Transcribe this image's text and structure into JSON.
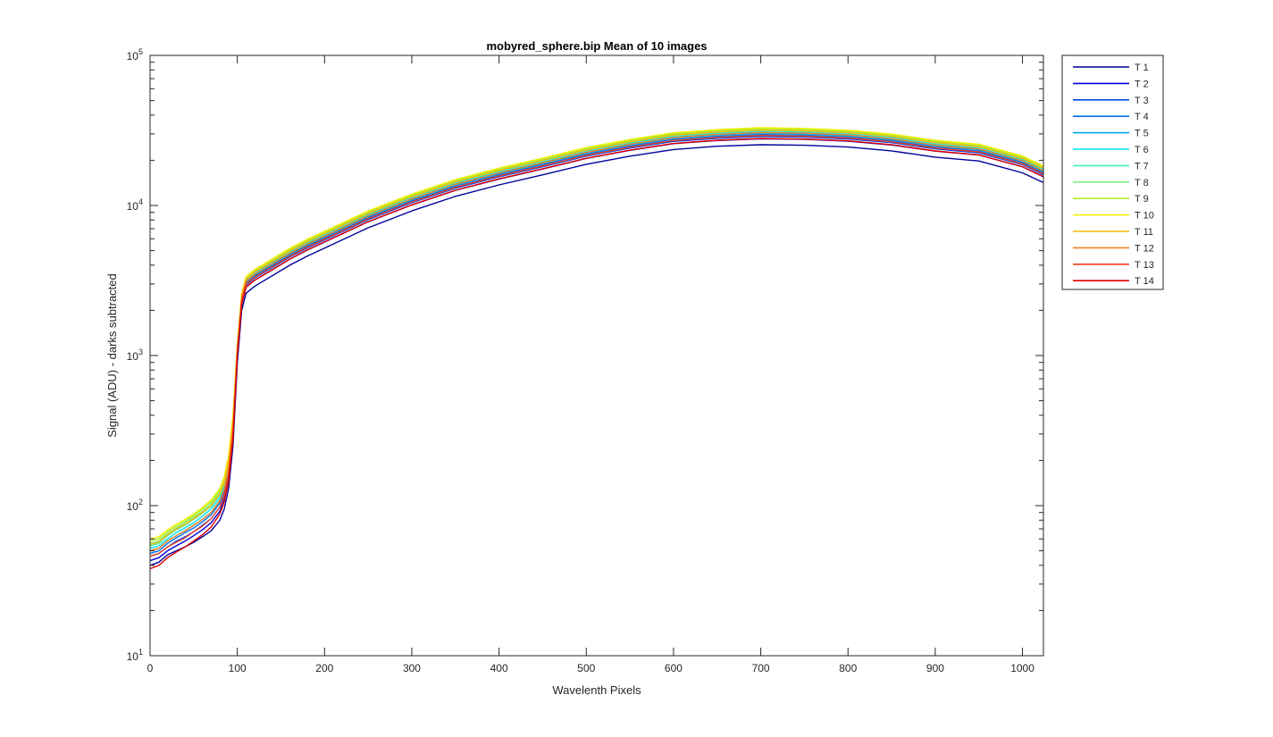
{
  "chart_data": {
    "type": "line",
    "title": "mobyred_sphere.bip  Mean of 10 images",
    "xlabel": "Wavelenth Pixels",
    "ylabel": "Signal (ADU) - darks subtracted",
    "xlim": [
      0,
      1024
    ],
    "ylim": [
      10,
      100000
    ],
    "yscale": "log",
    "grid": false,
    "legend_position": "outside-top-right",
    "x_ticks": [
      "0",
      "100",
      "200",
      "300",
      "400",
      "500",
      "600",
      "700",
      "800",
      "900",
      "1000"
    ],
    "y_ticks": [
      {
        "base": "10",
        "exp": "1"
      },
      {
        "base": "10",
        "exp": "2"
      },
      {
        "base": "10",
        "exp": "3"
      },
      {
        "base": "10",
        "exp": "4"
      },
      {
        "base": "10",
        "exp": "5"
      }
    ],
    "x": [
      0,
      10,
      20,
      30,
      40,
      50,
      60,
      70,
      80,
      85,
      90,
      95,
      100,
      105,
      110,
      120,
      140,
      160,
      180,
      200,
      250,
      300,
      350,
      400,
      450,
      500,
      550,
      600,
      650,
      700,
      750,
      800,
      850,
      900,
      950,
      1000,
      1024
    ],
    "series": [
      {
        "name": "T 1",
        "color": "#00009a",
        "values": [
          40,
          42,
          47,
          50,
          53,
          57,
          62,
          68,
          80,
          95,
          130,
          250,
          900,
          2000,
          2600,
          2900,
          3400,
          4000,
          4600,
          5200,
          7100,
          9200,
          11500,
          13700,
          16000,
          18800,
          21300,
          23600,
          24800,
          25400,
          25200,
          24500,
          23100,
          21000,
          19800,
          16500,
          14200
        ]
      },
      {
        "name": "T 2",
        "color": "#0000d8",
        "values": [
          43,
          45,
          50,
          54,
          58,
          63,
          69,
          77,
          92,
          110,
          150,
          290,
          1000,
          2200,
          2850,
          3180,
          3720,
          4380,
          5040,
          5700,
          7780,
          10080,
          12600,
          15000,
          17500,
          20600,
          23300,
          25800,
          27100,
          27800,
          27600,
          26800,
          25300,
          23000,
          21700,
          18100,
          15500
        ]
      },
      {
        "name": "T 3",
        "color": "#0048f0",
        "values": [
          46,
          48,
          53,
          58,
          62,
          67,
          74,
          82,
          98,
          117,
          160,
          305,
          1040,
          2270,
          2940,
          3290,
          3850,
          4530,
          5210,
          5890,
          8040,
          10420,
          13030,
          15520,
          18100,
          21300,
          24100,
          26700,
          28000,
          28800,
          28500,
          27700,
          26200,
          23800,
          22400,
          18700,
          16000
        ]
      },
      {
        "name": "T 4",
        "color": "#0070e8",
        "values": [
          48,
          50,
          56,
          61,
          66,
          71,
          78,
          87,
          104,
          124,
          170,
          320,
          1070,
          2340,
          3030,
          3390,
          3970,
          4670,
          5370,
          6080,
          8290,
          10740,
          13430,
          16000,
          18700,
          21950,
          24850,
          27550,
          28900,
          29700,
          29400,
          28600,
          27000,
          24500,
          23100,
          19300,
          16500
        ]
      },
      {
        "name": "T 5",
        "color": "#00a8f0",
        "values": [
          50,
          52,
          58,
          63,
          68,
          74,
          81,
          90,
          108,
          129,
          177,
          330,
          1090,
          2390,
          3090,
          3460,
          4050,
          4770,
          5480,
          6200,
          8460,
          10960,
          13700,
          16330,
          19050,
          22400,
          25350,
          28100,
          29500,
          30300,
          30000,
          29200,
          27550,
          25000,
          23600,
          19700,
          16800
        ]
      },
      {
        "name": "T 6",
        "color": "#00e0f0",
        "values": [
          52,
          54,
          60,
          66,
          71,
          77,
          85,
          95,
          113,
          135,
          185,
          345,
          1110,
          2430,
          3150,
          3530,
          4130,
          4860,
          5590,
          6320,
          8620,
          11170,
          13970,
          16650,
          19420,
          22800,
          25850,
          28650,
          30050,
          30900,
          30600,
          29750,
          28100,
          25500,
          24050,
          20100,
          17200
        ]
      },
      {
        "name": "T 7",
        "color": "#40f0c0",
        "values": [
          54,
          56,
          63,
          69,
          74,
          81,
          89,
          99,
          118,
          141,
          193,
          360,
          1130,
          2480,
          3210,
          3590,
          4210,
          4950,
          5690,
          6440,
          8790,
          11380,
          14230,
          16950,
          19780,
          23250,
          26330,
          29200,
          30650,
          31500,
          31150,
          30300,
          28600,
          26000,
          24500,
          20450,
          17500
        ]
      },
      {
        "name": "T 8",
        "color": "#80f080",
        "values": [
          56,
          58,
          65,
          71,
          77,
          84,
          92,
          103,
          123,
          147,
          201,
          375,
          1150,
          2520,
          3260,
          3650,
          4280,
          5030,
          5790,
          6550,
          8940,
          11580,
          14480,
          17250,
          20120,
          23650,
          26780,
          29700,
          31150,
          32050,
          31700,
          30850,
          29100,
          26450,
          24950,
          20800,
          17800
        ]
      },
      {
        "name": "T 9",
        "color": "#b0f030",
        "values": [
          58,
          60,
          67,
          73,
          79,
          86,
          95,
          106,
          127,
          152,
          208,
          390,
          1170,
          2560,
          3310,
          3710,
          4350,
          5110,
          5880,
          6650,
          9080,
          11760,
          14710,
          17520,
          20440,
          24000,
          27200,
          30150,
          31650,
          32550,
          32200,
          31300,
          29550,
          26850,
          25300,
          21100,
          18100
        ]
      },
      {
        "name": "T 10",
        "color": "#f0f000",
        "values": [
          60,
          62,
          69,
          75,
          81,
          88,
          97,
          109,
          130,
          156,
          214,
          400,
          1180,
          2590,
          3350,
          3750,
          4400,
          5170,
          5950,
          6730,
          9190,
          11900,
          14880,
          17730,
          20680,
          24300,
          27500,
          30500,
          32000,
          32950,
          32600,
          31700,
          29900,
          27150,
          25600,
          21350,
          18300
        ]
      },
      {
        "name": "T 11",
        "color": "#f8b800",
        "values": [
          55,
          57,
          64,
          70,
          75,
          82,
          90,
          100,
          120,
          144,
          197,
          370,
          1140,
          2500,
          3230,
          3620,
          4240,
          4990,
          5740,
          6500,
          8870,
          11490,
          14370,
          17120,
          19970,
          23460,
          26570,
          29450,
          30900,
          31800,
          31450,
          30600,
          28900,
          26250,
          24700,
          20600,
          17700
        ]
      },
      {
        "name": "T 12",
        "color": "#f08020",
        "values": [
          50,
          52,
          58,
          63,
          68,
          74,
          81,
          90,
          108,
          129,
          177,
          330,
          1100,
          2410,
          3120,
          3490,
          4090,
          4810,
          5530,
          6260,
          8540,
          11070,
          13840,
          16490,
          19240,
          22600,
          25600,
          28370,
          29770,
          30630,
          30300,
          29480,
          27830,
          25270,
          23800,
          19850,
          17000
        ]
      },
      {
        "name": "T 13",
        "color": "#f04020",
        "values": [
          46,
          48,
          53,
          57,
          61,
          67,
          73,
          82,
          98,
          117,
          160,
          300,
          1050,
          2300,
          2980,
          3330,
          3900,
          4590,
          5280,
          5980,
          8150,
          10560,
          13210,
          15740,
          18360,
          21570,
          24430,
          27080,
          28420,
          29240,
          28930,
          28140,
          26570,
          24130,
          22720,
          18950,
          16250
        ]
      },
      {
        "name": "T 14",
        "color": "#e00000",
        "values": [
          38,
          40,
          45,
          49,
          53,
          58,
          64,
          72,
          88,
          106,
          145,
          280,
          1000,
          2200,
          2850,
          3180,
          3730,
          4390,
          5050,
          5720,
          7800,
          10100,
          12630,
          15050,
          17560,
          20630,
          23370,
          25900,
          27180,
          27960,
          27670,
          26920,
          25420,
          23080,
          21730,
          18130,
          15550
        ]
      }
    ]
  }
}
